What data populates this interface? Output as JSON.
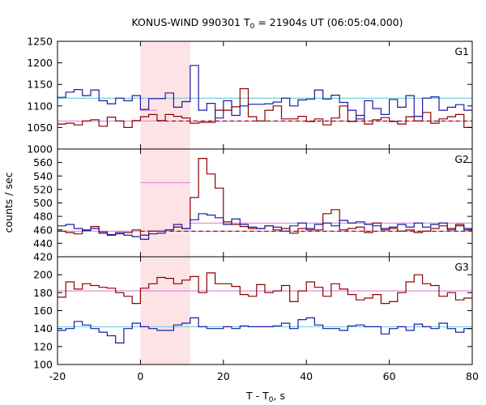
{
  "chart_data": {
    "type": "line",
    "title": "KONUS-WIND 990301 T",
    "title_sub": "0",
    "title_rest": " = 21904s UT (06:05:04.000)",
    "xlabel": "T - T",
    "xlabel_sub": "0",
    "xlabel_rest": ", s",
    "ylabel": "counts / sec",
    "xlim": [
      -20,
      80
    ],
    "xticks": [
      -20,
      0,
      20,
      40,
      60,
      80
    ],
    "shaded_interval": [
      0,
      12
    ],
    "grid": false,
    "colors": {
      "red_series": "#8b0000",
      "blue_series": "#1a1aa6",
      "cyan_level": "#6fd0e0",
      "pink_level": "#e08ad8",
      "band": "#fde3e6"
    },
    "panels": [
      {
        "name": "G1",
        "ylim": [
          1000,
          1250
        ],
        "yticks": [
          1000,
          1050,
          1100,
          1150,
          1200,
          1250
        ],
        "bin_start": -20,
        "bin_width": 2,
        "series": [
          {
            "color": "red",
            "values": [
              1058,
              1060,
              1056,
              1065,
              1068,
              1053,
              1074,
              1065,
              1050,
              1066,
              1075,
              1080,
              1066,
              1080,
              1076,
              1072,
              1060,
              1062,
              1062,
              1090,
              1090,
              1098,
              1140,
              1075,
              1065,
              1090,
              1100,
              1070,
              1070,
              1076,
              1064,
              1070,
              1056,
              1072,
              1100,
              1064,
              1078,
              1058,
              1068,
              1073,
              1064,
              1058,
              1075,
              1065,
              1085,
              1060,
              1070,
              1075,
              1080,
              1050,
              1065,
              1068
            ]
          },
          {
            "color": "blue",
            "values": [
              1120,
              1132,
              1138,
              1124,
              1137,
              1112,
              1105,
              1118,
              1112,
              1124,
              1092,
              1117,
              1117,
              1130,
              1097,
              1110,
              1194,
              1090,
              1106,
              1072,
              1112,
              1078,
              1100,
              1104,
              1104,
              1105,
              1109,
              1118,
              1100,
              1114,
              1116,
              1137,
              1116,
              1125,
              1108,
              1090,
              1070,
              1112,
              1094,
              1080,
              1115,
              1097,
              1124,
              1076,
              1118,
              1121,
              1090,
              1097,
              1103,
              1090,
              1105,
              1096
            ]
          }
        ],
        "levels": [
          {
            "color": "cyan",
            "y": 1118,
            "from": -20,
            "to": 80,
            "dash": false
          },
          {
            "color": "pink",
            "y": 1065,
            "from": -20,
            "to": 80,
            "dash": false
          },
          {
            "color": "pink",
            "y": 1090,
            "from": 0,
            "to": 4,
            "dash": false
          },
          {
            "color": "red",
            "y": 1065,
            "from": 4,
            "to": 80,
            "dash": true
          }
        ]
      },
      {
        "name": "G2",
        "ylim": [
          420,
          580
        ],
        "yticks": [
          420,
          440,
          460,
          480,
          500,
          520,
          540,
          560
        ],
        "bin_start": -20,
        "bin_width": 2,
        "series": [
          {
            "color": "red",
            "values": [
              458,
              456,
              454,
              460,
              465,
              457,
              452,
              454,
              456,
              460,
              452,
              458,
              458,
              460,
              464,
              462,
              508,
              566,
              543,
              522,
              472,
              468,
              465,
              462,
              462,
              466,
              460,
              462,
              455,
              462,
              460,
              460,
              484,
              490,
              460,
              462,
              464,
              456,
              470,
              460,
              462,
              458,
              460,
              456,
              458,
              462,
              466,
              462,
              468,
              460,
              460,
              464,
              460,
              474
            ]
          },
          {
            "color": "blue",
            "values": [
              466,
              468,
              462,
              459,
              462,
              455,
              453,
              456,
              452,
              450,
              446,
              454,
              455,
              460,
              468,
              462,
              475,
              484,
              482,
              478,
              468,
              476,
              468,
              464,
              462,
              466,
              464,
              458,
              466,
              470,
              462,
              468,
              470,
              466,
              474,
              470,
              472,
              468,
              466,
              462,
              464,
              468,
              464,
              470,
              464,
              468,
              470,
              460,
              466,
              462,
              460,
              468,
              470,
              460
            ]
          }
        ],
        "levels": [
          {
            "color": "pink",
            "y": 458,
            "from": -20,
            "to": 80,
            "dash": false
          },
          {
            "color": "pink",
            "y": 530,
            "from": 0,
            "to": 12,
            "dash": false
          },
          {
            "color": "pink",
            "y": 470,
            "from": 12,
            "to": 80,
            "dash": false
          },
          {
            "color": "red",
            "y": 458,
            "from": 0,
            "to": 80,
            "dash": true
          }
        ]
      },
      {
        "name": "G3",
        "ylim": [
          100,
          220
        ],
        "yticks": [
          100,
          120,
          140,
          160,
          180,
          200
        ],
        "bin_start": -20,
        "bin_width": 2,
        "series": [
          {
            "color": "red",
            "values": [
              175,
              192,
              184,
              190,
              188,
              186,
              185,
              180,
              176,
              168,
              185,
              190,
              197,
              196,
              190,
              194,
              198,
              180,
              202,
              190,
              190,
              187,
              178,
              176,
              189,
              180,
              182,
              188,
              170,
              182,
              192,
              186,
              176,
              190,
              184,
              178,
              172,
              174,
              178,
              168,
              170,
              180,
              192,
              200,
              190,
              188,
              176,
              180,
              172,
              174,
              196,
              182
            ]
          },
          {
            "color": "blue",
            "values": [
              138,
              140,
              148,
              144,
              140,
              136,
              132,
              124,
              140,
              146,
              142,
              140,
              138,
              138,
              144,
              146,
              152,
              142,
              140,
              140,
              142,
              140,
              143,
              142,
              142,
              142,
              143,
              146,
              140,
              150,
              152,
              144,
              140,
              140,
              138,
              143,
              144,
              142,
              142,
              134,
              140,
              142,
              138,
              145,
              142,
              140,
              146,
              140,
              136,
              140,
              140,
              141
            ]
          }
        ],
        "levels": [
          {
            "color": "pink",
            "y": 182,
            "from": -20,
            "to": 80,
            "dash": false
          },
          {
            "color": "cyan",
            "y": 142,
            "from": -20,
            "to": 80,
            "dash": false
          }
        ]
      }
    ]
  }
}
